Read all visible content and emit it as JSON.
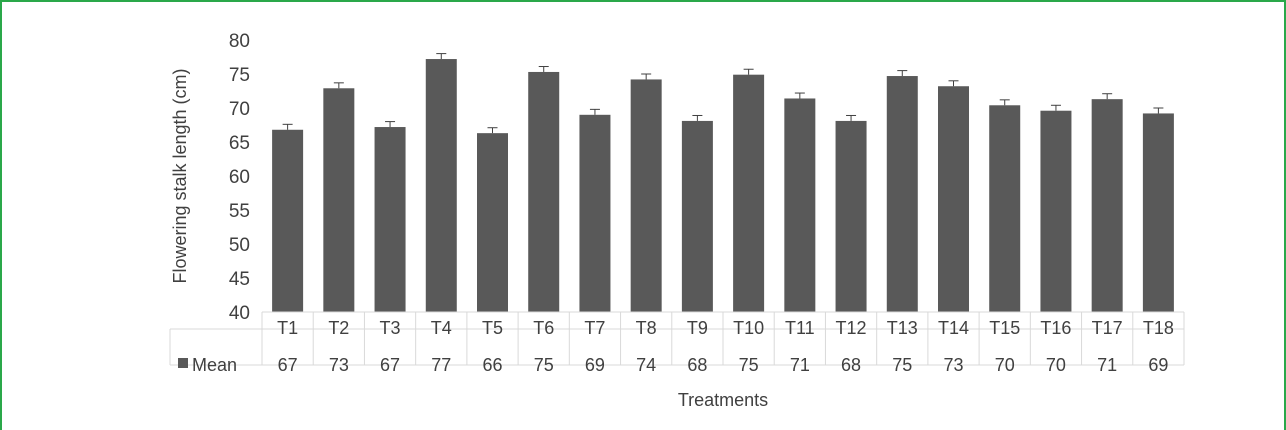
{
  "chart_data": {
    "type": "bar",
    "categories": [
      "T1",
      "T2",
      "T3",
      "T4",
      "T5",
      "T6",
      "T7",
      "T8",
      "T9",
      "T10",
      "T11",
      "T12",
      "T13",
      "T14",
      "T15",
      "T16",
      "T17",
      "T18"
    ],
    "series": [
      {
        "name": "Mean",
        "values": [
          66.8,
          72.9,
          67.2,
          77.2,
          66.3,
          75.3,
          69.0,
          74.2,
          68.1,
          74.9,
          71.4,
          68.1,
          74.7,
          73.2,
          70.4,
          69.6,
          71.3,
          69.2
        ],
        "error": [
          0.8,
          0.8,
          0.8,
          0.8,
          0.8,
          0.8,
          0.8,
          0.8,
          0.8,
          0.8,
          0.8,
          0.8,
          0.8,
          0.8,
          0.8,
          0.8,
          0.8,
          0.8
        ],
        "color": "#595959"
      }
    ],
    "table_values": [
      "67",
      "73",
      "67",
      "77",
      "66",
      "75",
      "69",
      "74",
      "68",
      "75",
      "71",
      "68",
      "75",
      "73",
      "70",
      "70",
      "71",
      "69"
    ],
    "y_ticks": [
      "40",
      "45",
      "50",
      "55",
      "60",
      "65",
      "70",
      "75",
      "80"
    ],
    "ylim": [
      40,
      80
    ],
    "xlabel": "Treatments",
    "ylabel": "Flowering stalk length (cm)",
    "grid": false,
    "legend": "data-table-left"
  },
  "colors": {
    "bar": "#595959",
    "frame": "#2aa84a",
    "table_line": "#d9d9d9"
  }
}
